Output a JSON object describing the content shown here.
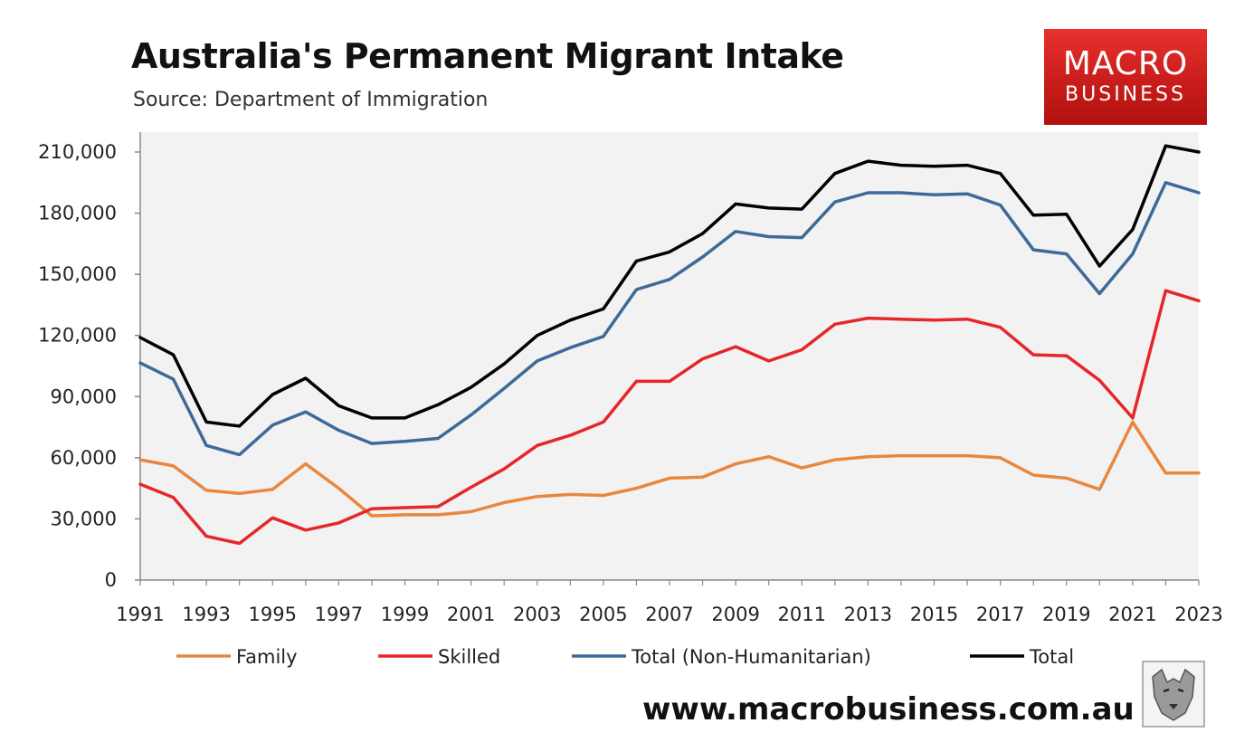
{
  "header": {
    "title": "Australia's Permanent Migrant Intake",
    "subtitle": "Source: Department of Immigration"
  },
  "logo": {
    "line1": "MACRO",
    "line2": "BUSINESS"
  },
  "footer": {
    "website": "www.macrobusiness.com.au"
  },
  "chart_data": {
    "type": "line",
    "title": "Australia's Permanent Migrant Intake",
    "subtitle": "Source: Department of Immigration",
    "xlabel": "",
    "ylabel": "",
    "ylim": [
      0,
      210000
    ],
    "y_ticks": [
      "0",
      "30,000",
      "60,000",
      "90,000",
      "120,000",
      "150,000",
      "180,000",
      "210,000"
    ],
    "x_ticks": [
      "1991",
      "1993",
      "1995",
      "1997",
      "1999",
      "2001",
      "2003",
      "2005",
      "2007",
      "2009",
      "2011",
      "2013",
      "2015",
      "2017",
      "2019",
      "2021",
      "2023"
    ],
    "x": [
      1991,
      1992,
      1993,
      1994,
      1995,
      1996,
      1997,
      1998,
      1999,
      2000,
      2001,
      2002,
      2003,
      2004,
      2005,
      2006,
      2007,
      2008,
      2009,
      2010,
      2011,
      2012,
      2013,
      2014,
      2015,
      2016,
      2017,
      2018,
      2019,
      2020,
      2021,
      2022,
      2023
    ],
    "grid": false,
    "legend_position": "bottom",
    "series": [
      {
        "name": "Family",
        "color": "#e8873f",
        "values": [
          59000,
          56000,
          44000,
          42500,
          44500,
          57000,
          45000,
          31500,
          32000,
          32000,
          33500,
          38000,
          41000,
          42000,
          41500,
          45000,
          50000,
          50500,
          57000,
          60500,
          55000,
          59000,
          60500,
          61000,
          61000,
          61000,
          60000,
          51500,
          50000,
          44500,
          77500,
          52500,
          52500
        ]
      },
      {
        "name": "Skilled",
        "color": "#e5262a",
        "values": [
          47000,
          40500,
          21500,
          18000,
          30500,
          24500,
          28000,
          35000,
          35500,
          36000,
          45500,
          54500,
          66000,
          71000,
          77500,
          97500,
          97500,
          108500,
          114500,
          107500,
          113000,
          125500,
          128500,
          128000,
          127500,
          128000,
          124000,
          110500,
          110000,
          98000,
          79500,
          142000,
          137000
        ]
      },
      {
        "name": "Total (Non-Humanitarian)",
        "color": "#3d6a98",
        "values": [
          106500,
          98500,
          66000,
          61500,
          76000,
          82500,
          73500,
          67000,
          68000,
          69500,
          81000,
          94000,
          107500,
          114000,
          119500,
          142500,
          147500,
          158500,
          171000,
          168500,
          168000,
          185500,
          190000,
          190000,
          189000,
          189500,
          184000,
          162000,
          160000,
          140500,
          160000,
          195000,
          190000
        ]
      },
      {
        "name": "Total",
        "color": "#000000",
        "values": [
          119000,
          110500,
          77500,
          75500,
          91000,
          99000,
          85500,
          79500,
          79500,
          86000,
          94500,
          106000,
          120000,
          127500,
          133000,
          156500,
          161000,
          170000,
          184500,
          182500,
          182000,
          199500,
          205500,
          203500,
          203000,
          203500,
          199500,
          179000,
          179500,
          154000,
          172000,
          213000,
          210000
        ]
      }
    ]
  }
}
